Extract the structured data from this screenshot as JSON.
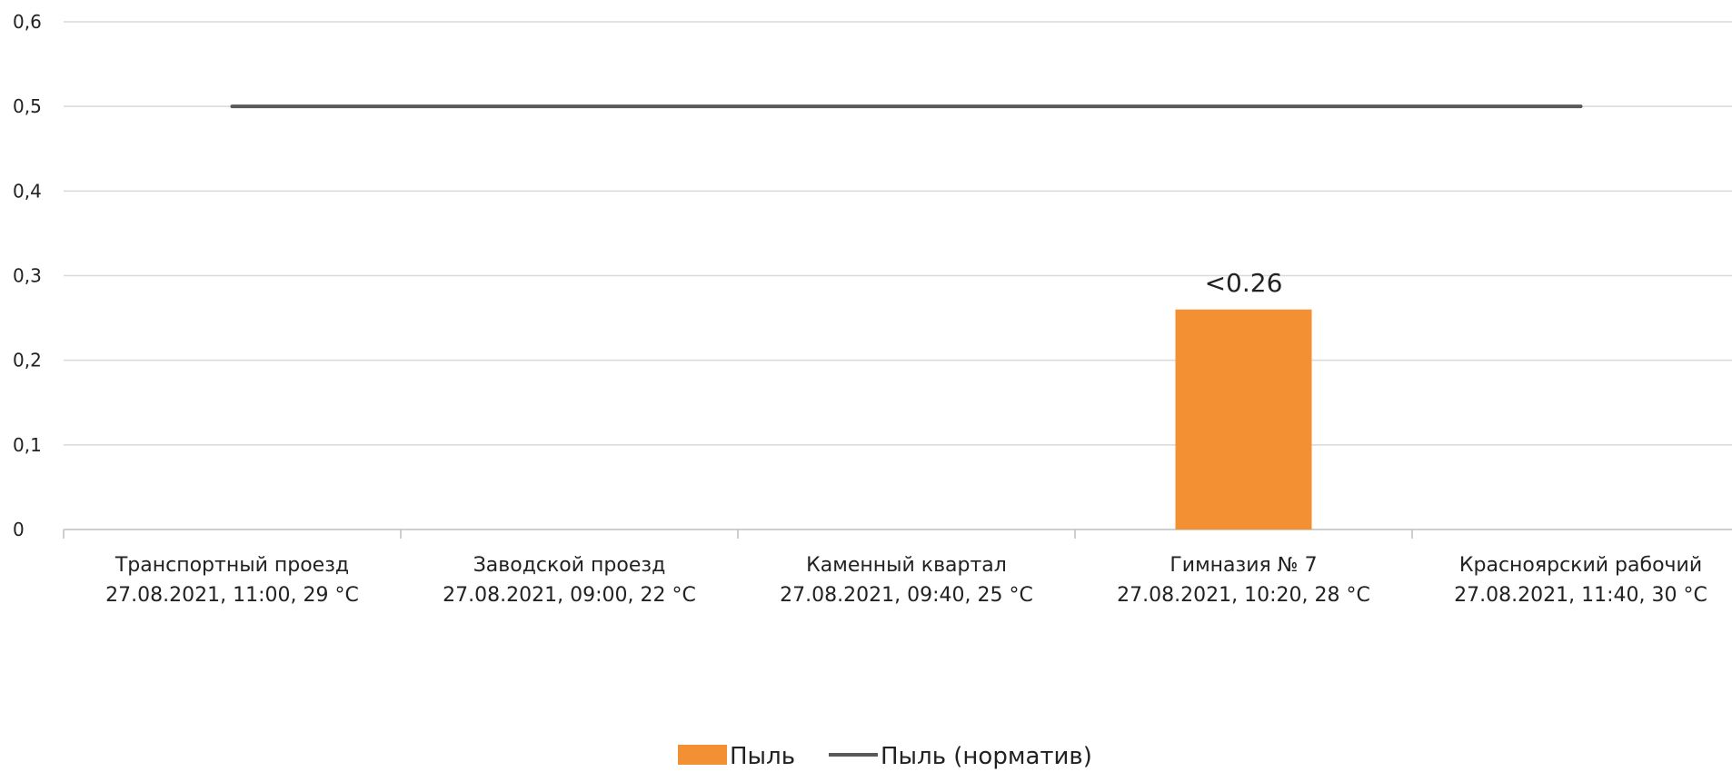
{
  "chart_data": {
    "type": "bar",
    "title": "",
    "xlabel": "",
    "ylabel": "",
    "ylim": [
      0,
      0.6
    ],
    "yticks": [
      {
        "value": 0,
        "label": "0"
      },
      {
        "value": 0.1,
        "label": "0,1"
      },
      {
        "value": 0.2,
        "label": "0,2"
      },
      {
        "value": 0.3,
        "label": "0,3"
      },
      {
        "value": 0.4,
        "label": "0,4"
      },
      {
        "value": 0.5,
        "label": "0,5"
      },
      {
        "value": 0.6,
        "label": "0,6"
      }
    ],
    "grid": true,
    "categories": [
      {
        "name": "Транспортный проезд",
        "detail": "27.08.2021, 11:00, 29 °C"
      },
      {
        "name": "Заводской проезд",
        "detail": "27.08.2021, 09:00, 22 °C"
      },
      {
        "name": "Каменный квартал",
        "detail": "27.08.2021, 09:40, 25 °C"
      },
      {
        "name": "Гимназия № 7",
        "detail": "27.08.2021, 10:20, 28 °C"
      },
      {
        "name": "Красноярский рабочий",
        "detail": "27.08.2021, 11:40, 30 °C"
      }
    ],
    "series": [
      {
        "name": "Пыль",
        "type": "bar",
        "color": "#f39033",
        "values": [
          null,
          null,
          null,
          0.26,
          null
        ],
        "data_labels": [
          null,
          null,
          null,
          "<0.26",
          null
        ]
      },
      {
        "name": "Пыль (норматив)",
        "type": "line",
        "color": "#595959",
        "values": [
          0.5,
          0.5,
          0.5,
          0.5,
          0.5
        ]
      }
    ],
    "legend_position": "bottom-center"
  }
}
